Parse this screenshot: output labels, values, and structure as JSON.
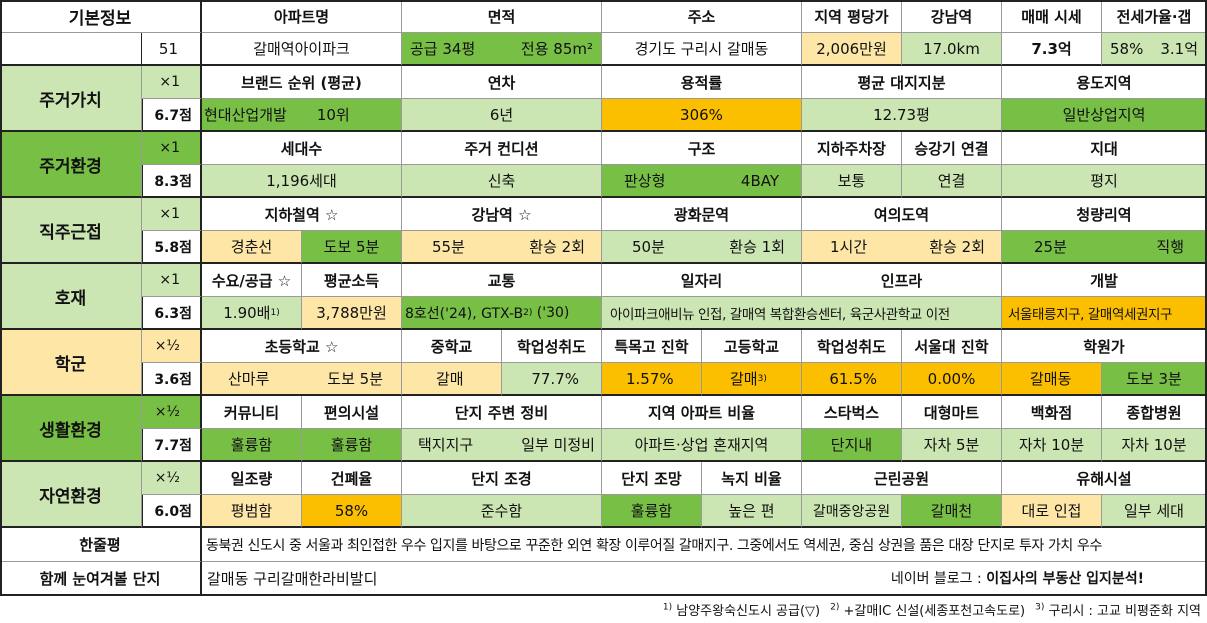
{
  "basic": {
    "label": "기본정보",
    "number": "51",
    "headers": [
      "아파트명",
      "면적",
      "주소",
      "지역 평당가",
      "강남역",
      "매매 시세",
      "전세가율·갭"
    ],
    "apt_name": "갈매역아이파크",
    "area_supply": "공급 34평",
    "area_exclusive": "전용 85m²",
    "address": "경기도 구리시 갈매동",
    "price_per_pyeong": "2,006만원",
    "gangnam_distance": "17.0km",
    "sale_price": "7.3억",
    "jeonse_rate": "58%",
    "gap": "3.1억"
  },
  "housing_value": {
    "label": "주거가치",
    "weight": "×1",
    "score": "6.7점",
    "headers": [
      "브랜드 순위 (평균)",
      "연차",
      "용적률",
      "평균 대지지분",
      "용도지역"
    ],
    "brand": "현대산업개발",
    "brand_rank": "10위",
    "age": "6년",
    "far": "306%",
    "land_share": "12.73평",
    "zoning": "일반상업지역"
  },
  "housing_env": {
    "label": "주거환경",
    "weight": "×1",
    "score": "8.3점",
    "headers": [
      "세대수",
      "주거 컨디션",
      "구조",
      "지하주차장",
      "승강기 연결",
      "지대"
    ],
    "households": "1,196세대",
    "condition": "신축",
    "structure_type": "판상형",
    "structure_bay": "4BAY",
    "parking": "보통",
    "elevator": "연결",
    "terrain": "평지"
  },
  "commute": {
    "label": "직주근접",
    "weight": "×1",
    "score": "5.8점",
    "headers": [
      "지하철역 ☆",
      "강남역 ☆",
      "광화문역",
      "여의도역",
      "청량리역"
    ],
    "subway_line": "경춘선",
    "subway_walk": "도보 5분",
    "gangnam_time": "55분",
    "gangnam_transfer": "환승 2회",
    "gwanghwamun_time": "50분",
    "gwanghwamun_transfer": "환승 1회",
    "yeouido_time": "1시간",
    "yeouido_transfer": "환승 2회",
    "cheongnyangni_time": "25분",
    "cheongnyangni_transfer": "직행"
  },
  "development": {
    "label": "호재",
    "weight": "×1",
    "score": "6.3점",
    "headers": [
      "수요/공급 ☆",
      "평균소득",
      "교통",
      "일자리",
      "인프라",
      "개발"
    ],
    "supply_ratio": "1.90배",
    "supply_note_mark": "1)",
    "income": "3,788만원",
    "traffic": "8호선('24), GTX-B",
    "traffic_note_mark": "2)",
    "traffic_tail": " ('30)",
    "jobs_infra": "아이파크애비뉴 인접, 갈매역 복합환승센터, 육군사관학교 이전",
    "dev": "서울태릉지구, 갈매역세권지구"
  },
  "school": {
    "label": "학군",
    "weight": "×½",
    "score": "3.6점",
    "headers": [
      "초등학교 ☆",
      "중학교",
      "학업성취도",
      "특목고 진학",
      "고등학교",
      "학업성취도",
      "서울대 진학",
      "학원가"
    ],
    "elementary": "산마루",
    "elementary_walk": "도보 5분",
    "middle": "갈매",
    "middle_achievement": "77.7%",
    "special_high": "1.57%",
    "high": "갈매",
    "high_note_mark": "3)",
    "high_achievement": "61.5%",
    "snu": "0.00%",
    "academy": "갈매동",
    "academy_walk": "도보 3분"
  },
  "living_env": {
    "label": "생활환경",
    "weight": "×½",
    "score": "7.7점",
    "headers": [
      "커뮤니티",
      "편의시설",
      "단지 주변 정비",
      "지역 아파트 비율",
      "스타벅스",
      "대형마트",
      "백화점",
      "종합병원"
    ],
    "community": "훌륭함",
    "convenience": "훌륭함",
    "surround_1": "택지지구",
    "surround_2": "일부 미정비",
    "apt_ratio": "아파트·상업 혼재지역",
    "starbucks": "단지내",
    "mart": "자차 5분",
    "dept_store": "자차 10분",
    "hospital": "자차 10분"
  },
  "natural_env": {
    "label": "자연환경",
    "weight": "×½",
    "score": "6.0점",
    "headers": [
      "일조량",
      "건폐율",
      "단지 조경",
      "단지 조망",
      "녹지 비율",
      "근린공원",
      "유해시설"
    ],
    "sunlight": "평범함",
    "coverage": "58%",
    "landscape": "준수함",
    "view": "훌륭함",
    "green_ratio": "높은 편",
    "park_1": "갈매중앙공원",
    "park_2": "갈매천",
    "hazard_1": "대로 인접",
    "hazard_2": "일부 세대"
  },
  "summary": {
    "label": "한줄평",
    "text": "동북권 신도시 중 서울과 최인접한 우수 입지를 바탕으로 꾸준한 외연 확장 이루어질 갈매지구. 그중에서도 역세권, 중심 상권을 품은 대장 단지로 투자 가치 우수"
  },
  "related": {
    "label": "함께 눈여겨볼 단지",
    "text": "갈매동 구리갈매한라비발디",
    "blog_prefix": "네이버 블로그 : ",
    "blog_name": "이집사의 부동산 입지분석!"
  },
  "footnotes": [
    {
      "mark": "1)",
      "text": "남양주왕숙신도시 공급(▽)"
    },
    {
      "mark": "2)",
      "text": "+갈매IC 신설(세종포천고속도로)"
    },
    {
      "mark": "3)",
      "text": "구리시 : 고교 비평준화 지역"
    }
  ]
}
